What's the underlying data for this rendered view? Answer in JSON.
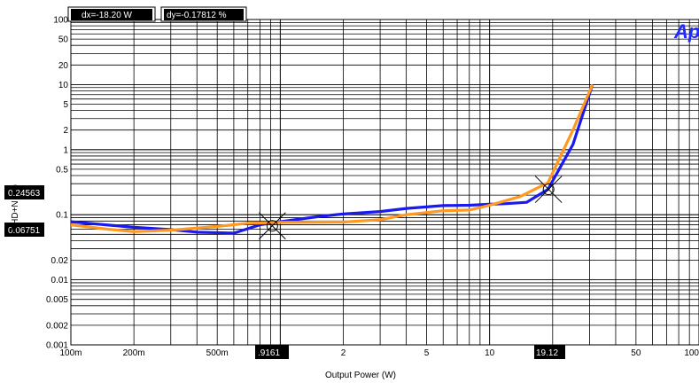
{
  "chart_data": {
    "type": "line",
    "title": "",
    "xlabel": "Output Power (W)",
    "ylabel": "THD+N (%)",
    "x_scale": "log",
    "y_scale": "log",
    "xlim": [
      0.1,
      100
    ],
    "ylim": [
      0.001,
      100
    ],
    "grid": true,
    "x_ticks": [
      {
        "value": 0.1,
        "label": "100m"
      },
      {
        "value": 0.2,
        "label": "200m"
      },
      {
        "value": 0.5,
        "label": "500m"
      },
      {
        "value": 2,
        "label": "2"
      },
      {
        "value": 5,
        "label": "5"
      },
      {
        "value": 10,
        "label": "10"
      },
      {
        "value": 50,
        "label": "50"
      },
      {
        "value": 100,
        "label": "100"
      }
    ],
    "y_ticks": [
      {
        "value": 100,
        "label": "100"
      },
      {
        "value": 50,
        "label": "50"
      },
      {
        "value": 20,
        "label": "20"
      },
      {
        "value": 10,
        "label": "10"
      },
      {
        "value": 5,
        "label": "5"
      },
      {
        "value": 2,
        "label": "2"
      },
      {
        "value": 1,
        "label": "1"
      },
      {
        "value": 0.5,
        "label": "0.5"
      },
      {
        "value": 0.1,
        "label": "0.1"
      },
      {
        "value": 0.02,
        "label": "0.02"
      },
      {
        "value": 0.01,
        "label": "0.01"
      },
      {
        "value": 0.005,
        "label": "0.005"
      },
      {
        "value": 0.002,
        "label": "0.002"
      },
      {
        "value": 0.001,
        "label": "0.001"
      }
    ],
    "series": [
      {
        "color": "#1a1aee",
        "points": [
          [
            0.1,
            0.078
          ],
          [
            0.2,
            0.064
          ],
          [
            0.3,
            0.059
          ],
          [
            0.4,
            0.054
          ],
          [
            0.6,
            0.052
          ],
          [
            0.8,
            0.07
          ],
          [
            1.0,
            0.078
          ],
          [
            1.5,
            0.093
          ],
          [
            2.0,
            0.103
          ],
          [
            3.0,
            0.112
          ],
          [
            4.0,
            0.125
          ],
          [
            6.0,
            0.138
          ],
          [
            8.0,
            0.14
          ],
          [
            10.0,
            0.145
          ],
          [
            12.0,
            0.148
          ],
          [
            15.0,
            0.155
          ],
          [
            19.0,
            0.245
          ],
          [
            25.0,
            1.2
          ],
          [
            31.0,
            10.0
          ]
        ]
      },
      {
        "color": "#ff9922",
        "points": [
          [
            0.1,
            0.07
          ],
          [
            0.15,
            0.06
          ],
          [
            0.2,
            0.055
          ],
          [
            0.3,
            0.058
          ],
          [
            0.5,
            0.066
          ],
          [
            0.7,
            0.074
          ],
          [
            1.0,
            0.076
          ],
          [
            2.0,
            0.077
          ],
          [
            3.0,
            0.084
          ],
          [
            4.0,
            0.1
          ],
          [
            6.0,
            0.115
          ],
          [
            8.0,
            0.118
          ],
          [
            10.0,
            0.14
          ],
          [
            12.0,
            0.165
          ],
          [
            14.0,
            0.19
          ],
          [
            19.0,
            0.31
          ],
          [
            25.0,
            2.0
          ],
          [
            31.0,
            10.0
          ]
        ]
      }
    ],
    "cursors": [
      {
        "x": 0.9161,
        "y": 0.06751
      },
      {
        "x": 19.12,
        "y": 0.24563
      }
    ]
  },
  "readouts": {
    "dx": "dx=-18.20   W",
    "dy": "dy=-0.17812 %",
    "cursor1_x": ".9161",
    "cursor2_x": "19.12",
    "cursor2_y": "0.24563",
    "cursor1_y": "0.06751"
  },
  "logo": {
    "text": "Ap"
  },
  "colors": {
    "readout_bg": "#000000",
    "grid": "#000000"
  }
}
